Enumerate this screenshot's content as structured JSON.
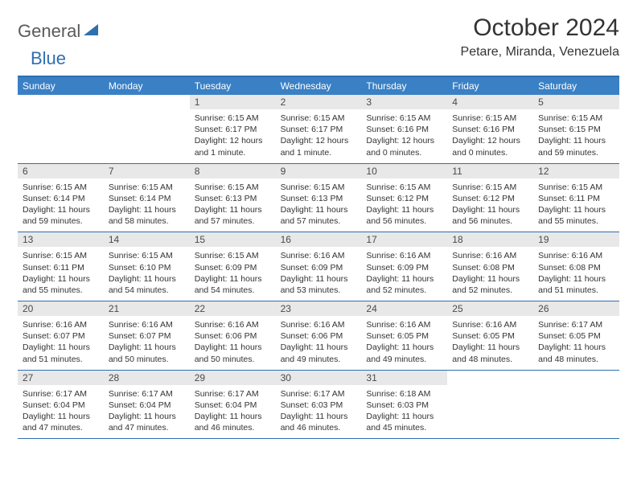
{
  "logo": {
    "general": "General",
    "blue": "Blue"
  },
  "title": "October 2024",
  "location": "Petare, Miranda, Venezuela",
  "colors": {
    "header_bg": "#3a80c5",
    "band_bg": "#e8e8e8",
    "rule": "#2f6fb0",
    "logo_gray": "#5a5a5a",
    "logo_blue": "#2f6fb0"
  },
  "day_names": [
    "Sunday",
    "Monday",
    "Tuesday",
    "Wednesday",
    "Thursday",
    "Friday",
    "Saturday"
  ],
  "weeks": [
    [
      {
        "num": "",
        "lines": [
          "",
          "",
          ""
        ]
      },
      {
        "num": "",
        "lines": [
          "",
          "",
          ""
        ]
      },
      {
        "num": "1",
        "lines": [
          "Sunrise: 6:15 AM",
          "Sunset: 6:17 PM",
          "Daylight: 12 hours and 1 minute."
        ]
      },
      {
        "num": "2",
        "lines": [
          "Sunrise: 6:15 AM",
          "Sunset: 6:17 PM",
          "Daylight: 12 hours and 1 minute."
        ]
      },
      {
        "num": "3",
        "lines": [
          "Sunrise: 6:15 AM",
          "Sunset: 6:16 PM",
          "Daylight: 12 hours and 0 minutes."
        ]
      },
      {
        "num": "4",
        "lines": [
          "Sunrise: 6:15 AM",
          "Sunset: 6:16 PM",
          "Daylight: 12 hours and 0 minutes."
        ]
      },
      {
        "num": "5",
        "lines": [
          "Sunrise: 6:15 AM",
          "Sunset: 6:15 PM",
          "Daylight: 11 hours and 59 minutes."
        ]
      }
    ],
    [
      {
        "num": "6",
        "lines": [
          "Sunrise: 6:15 AM",
          "Sunset: 6:14 PM",
          "Daylight: 11 hours and 59 minutes."
        ]
      },
      {
        "num": "7",
        "lines": [
          "Sunrise: 6:15 AM",
          "Sunset: 6:14 PM",
          "Daylight: 11 hours and 58 minutes."
        ]
      },
      {
        "num": "8",
        "lines": [
          "Sunrise: 6:15 AM",
          "Sunset: 6:13 PM",
          "Daylight: 11 hours and 57 minutes."
        ]
      },
      {
        "num": "9",
        "lines": [
          "Sunrise: 6:15 AM",
          "Sunset: 6:13 PM",
          "Daylight: 11 hours and 57 minutes."
        ]
      },
      {
        "num": "10",
        "lines": [
          "Sunrise: 6:15 AM",
          "Sunset: 6:12 PM",
          "Daylight: 11 hours and 56 minutes."
        ]
      },
      {
        "num": "11",
        "lines": [
          "Sunrise: 6:15 AM",
          "Sunset: 6:12 PM",
          "Daylight: 11 hours and 56 minutes."
        ]
      },
      {
        "num": "12",
        "lines": [
          "Sunrise: 6:15 AM",
          "Sunset: 6:11 PM",
          "Daylight: 11 hours and 55 minutes."
        ]
      }
    ],
    [
      {
        "num": "13",
        "lines": [
          "Sunrise: 6:15 AM",
          "Sunset: 6:11 PM",
          "Daylight: 11 hours and 55 minutes."
        ]
      },
      {
        "num": "14",
        "lines": [
          "Sunrise: 6:15 AM",
          "Sunset: 6:10 PM",
          "Daylight: 11 hours and 54 minutes."
        ]
      },
      {
        "num": "15",
        "lines": [
          "Sunrise: 6:15 AM",
          "Sunset: 6:09 PM",
          "Daylight: 11 hours and 54 minutes."
        ]
      },
      {
        "num": "16",
        "lines": [
          "Sunrise: 6:16 AM",
          "Sunset: 6:09 PM",
          "Daylight: 11 hours and 53 minutes."
        ]
      },
      {
        "num": "17",
        "lines": [
          "Sunrise: 6:16 AM",
          "Sunset: 6:09 PM",
          "Daylight: 11 hours and 52 minutes."
        ]
      },
      {
        "num": "18",
        "lines": [
          "Sunrise: 6:16 AM",
          "Sunset: 6:08 PM",
          "Daylight: 11 hours and 52 minutes."
        ]
      },
      {
        "num": "19",
        "lines": [
          "Sunrise: 6:16 AM",
          "Sunset: 6:08 PM",
          "Daylight: 11 hours and 51 minutes."
        ]
      }
    ],
    [
      {
        "num": "20",
        "lines": [
          "Sunrise: 6:16 AM",
          "Sunset: 6:07 PM",
          "Daylight: 11 hours and 51 minutes."
        ]
      },
      {
        "num": "21",
        "lines": [
          "Sunrise: 6:16 AM",
          "Sunset: 6:07 PM",
          "Daylight: 11 hours and 50 minutes."
        ]
      },
      {
        "num": "22",
        "lines": [
          "Sunrise: 6:16 AM",
          "Sunset: 6:06 PM",
          "Daylight: 11 hours and 50 minutes."
        ]
      },
      {
        "num": "23",
        "lines": [
          "Sunrise: 6:16 AM",
          "Sunset: 6:06 PM",
          "Daylight: 11 hours and 49 minutes."
        ]
      },
      {
        "num": "24",
        "lines": [
          "Sunrise: 6:16 AM",
          "Sunset: 6:05 PM",
          "Daylight: 11 hours and 49 minutes."
        ]
      },
      {
        "num": "25",
        "lines": [
          "Sunrise: 6:16 AM",
          "Sunset: 6:05 PM",
          "Daylight: 11 hours and 48 minutes."
        ]
      },
      {
        "num": "26",
        "lines": [
          "Sunrise: 6:17 AM",
          "Sunset: 6:05 PM",
          "Daylight: 11 hours and 48 minutes."
        ]
      }
    ],
    [
      {
        "num": "27",
        "lines": [
          "Sunrise: 6:17 AM",
          "Sunset: 6:04 PM",
          "Daylight: 11 hours and 47 minutes."
        ]
      },
      {
        "num": "28",
        "lines": [
          "Sunrise: 6:17 AM",
          "Sunset: 6:04 PM",
          "Daylight: 11 hours and 47 minutes."
        ]
      },
      {
        "num": "29",
        "lines": [
          "Sunrise: 6:17 AM",
          "Sunset: 6:04 PM",
          "Daylight: 11 hours and 46 minutes."
        ]
      },
      {
        "num": "30",
        "lines": [
          "Sunrise: 6:17 AM",
          "Sunset: 6:03 PM",
          "Daylight: 11 hours and 46 minutes."
        ]
      },
      {
        "num": "31",
        "lines": [
          "Sunrise: 6:18 AM",
          "Sunset: 6:03 PM",
          "Daylight: 11 hours and 45 minutes."
        ]
      },
      {
        "num": "",
        "lines": [
          "",
          "",
          ""
        ]
      },
      {
        "num": "",
        "lines": [
          "",
          "",
          ""
        ]
      }
    ]
  ]
}
